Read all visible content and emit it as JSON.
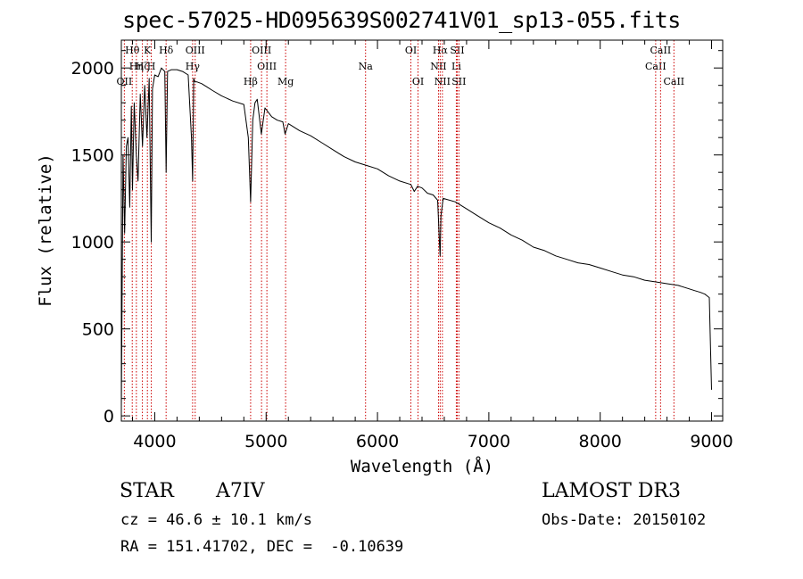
{
  "header": {
    "title": "spec-57025-HD095639S002741V01_sp13-055.fits"
  },
  "info": {
    "object_class": "STAR",
    "subclass": "A7IV",
    "survey": "LAMOST DR3",
    "cz": "cz = 46.6 ± 10.1 km/s",
    "obs_date": "Obs-Date: 20150102",
    "coords": "RA = 151.41702, DEC =  -0.10639"
  },
  "colors": {
    "spectrum": "#000000",
    "line_marker": "#cc0000"
  },
  "chart_data": {
    "type": "line",
    "title": "spec-57025-HD095639S002741V01_sp13-055.fits",
    "xlabel": "Wavelength (Å)",
    "ylabel": "Flux (relative)",
    "xlim": [
      3700,
      9100
    ],
    "ylim": [
      -30,
      2160
    ],
    "x_ticks": [
      4000,
      5000,
      6000,
      7000,
      8000,
      9000
    ],
    "y_ticks": [
      0,
      500,
      1000,
      1500,
      2000
    ],
    "series": [
      {
        "name": "spectrum",
        "x": [
          3700,
          3715,
          3730,
          3745,
          3760,
          3775,
          3790,
          3800,
          3815,
          3835,
          3850,
          3870,
          3890,
          3910,
          3930,
          3950,
          3968,
          3980,
          4000,
          4030,
          4060,
          4090,
          4102,
          4115,
          4150,
          4200,
          4250,
          4300,
          4330,
          4340,
          4350,
          4360,
          4380,
          4420,
          4470,
          4520,
          4600,
          4700,
          4800,
          4840,
          4861,
          4880,
          4900,
          4920,
          4957,
          4990,
          5050,
          5100,
          5150,
          5170,
          5200,
          5300,
          5400,
          5500,
          5600,
          5700,
          5800,
          5900,
          6000,
          6100,
          6200,
          6300,
          6330,
          6360,
          6400,
          6450,
          6500,
          6540,
          6550,
          6556,
          6563,
          6570,
          6590,
          6700,
          6800,
          6900,
          7000,
          7100,
          7200,
          7300,
          7400,
          7500,
          7600,
          7700,
          7800,
          7900,
          8000,
          8100,
          8200,
          8300,
          8400,
          8500,
          8600,
          8700,
          8800,
          8850,
          8900,
          8940,
          8960,
          8980,
          8990,
          9000
        ],
        "y": [
          50,
          1500,
          1050,
          1550,
          1600,
          1200,
          1780,
          1300,
          1800,
          1500,
          1350,
          1850,
          1550,
          1900,
          1600,
          1940,
          1000,
          1880,
          1960,
          1950,
          2000,
          1980,
          1400,
          1980,
          1990,
          1990,
          1980,
          1960,
          1600,
          1350,
          1940,
          1920,
          1920,
          1910,
          1890,
          1870,
          1840,
          1810,
          1790,
          1600,
          1230,
          1700,
          1800,
          1820,
          1620,
          1770,
          1720,
          1700,
          1690,
          1620,
          1680,
          1640,
          1610,
          1570,
          1530,
          1490,
          1460,
          1440,
          1420,
          1380,
          1350,
          1330,
          1290,
          1320,
          1310,
          1280,
          1270,
          1240,
          1100,
          1000,
          920,
          1150,
          1250,
          1230,
          1190,
          1150,
          1110,
          1080,
          1040,
          1010,
          970,
          950,
          920,
          900,
          880,
          870,
          850,
          830,
          810,
          800,
          780,
          770,
          760,
          750,
          730,
          720,
          710,
          700,
          690,
          680,
          400,
          150
        ]
      }
    ],
    "lines": [
      {
        "w": 3727,
        "label": "OII",
        "row": 2
      },
      {
        "w": 3798,
        "label": "Hθ",
        "row": 0
      },
      {
        "w": 3835,
        "label": "Hη",
        "row": 1
      },
      {
        "w": 3889,
        "label": "Hζ",
        "row": 1
      },
      {
        "w": 3934,
        "label": "K",
        "row": 0
      },
      {
        "w": 3969,
        "label": "H",
        "row": 1
      },
      {
        "w": 4102,
        "label": "Hδ",
        "row": 0
      },
      {
        "w": 4340,
        "label": "Hγ",
        "row": 1
      },
      {
        "w": 4363,
        "label": "OIII",
        "row": 0
      },
      {
        "w": 4861,
        "label": "Hβ",
        "row": 2
      },
      {
        "w": 4959,
        "label": "OIII",
        "row": 0
      },
      {
        "w": 5007,
        "label": "OIII",
        "row": 1
      },
      {
        "w": 5175,
        "label": "Mg",
        "row": 2
      },
      {
        "w": 5893,
        "label": "Na",
        "row": 1
      },
      {
        "w": 6300,
        "label": "OI",
        "row": 0
      },
      {
        "w": 6364,
        "label": "OI",
        "row": 2
      },
      {
        "w": 6548,
        "label": "NII",
        "row": 1
      },
      {
        "w": 6563,
        "label": "Hα",
        "row": 0
      },
      {
        "w": 6583,
        "label": "NII",
        "row": 2
      },
      {
        "w": 6708,
        "label": "Li",
        "row": 1
      },
      {
        "w": 6716,
        "label": "SII",
        "row": 0
      },
      {
        "w": 6731,
        "label": "SII",
        "row": 2
      },
      {
        "w": 8498,
        "label": "CaII",
        "row": 1
      },
      {
        "w": 8542,
        "label": "CaII",
        "row": 0
      },
      {
        "w": 8662,
        "label": "CaII",
        "row": 2
      }
    ]
  }
}
